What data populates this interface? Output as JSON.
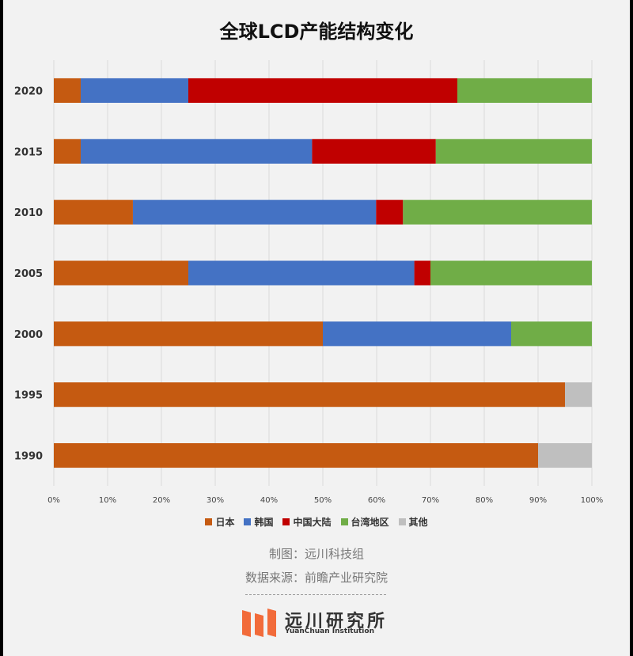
{
  "chart_data": {
    "type": "bar",
    "orientation": "horizontal",
    "stacked": true,
    "title": "全球LCD产能结构变化",
    "categories": [
      "2020",
      "2015",
      "2010",
      "2005",
      "2000",
      "1995",
      "1990"
    ],
    "series": [
      {
        "name": "日本",
        "color": "#c55a11",
        "values": [
          5,
          5,
          14.7,
          25,
          50,
          95,
          90
        ]
      },
      {
        "name": "韩国",
        "color": "#4472c4",
        "values": [
          20,
          43,
          45.2,
          42,
          35,
          0,
          0
        ]
      },
      {
        "name": "中国大陆",
        "color": "#c00000",
        "values": [
          50,
          23,
          5,
          3,
          0,
          0,
          0
        ]
      },
      {
        "name": "台湾地区",
        "color": "#70ad47",
        "values": [
          25,
          29,
          35.1,
          30,
          15,
          0,
          0
        ]
      },
      {
        "name": "其他",
        "color": "#bfbfbf",
        "values": [
          0,
          0,
          0,
          0,
          0,
          5,
          10
        ]
      }
    ],
    "xlim": [
      0,
      100
    ],
    "x_ticks": [
      "0%",
      "10%",
      "20%",
      "30%",
      "40%",
      "50%",
      "60%",
      "70%",
      "80%",
      "90%",
      "100%"
    ],
    "grid": true,
    "legend_position": "bottom"
  },
  "credits": {
    "made_by": "制图：远川科技组",
    "source": "数据来源：前瞻产业研究院"
  },
  "logo": {
    "name_cn": "远川研究所",
    "name_en": "YuanChuan Institution",
    "color": "#f26b3a"
  }
}
